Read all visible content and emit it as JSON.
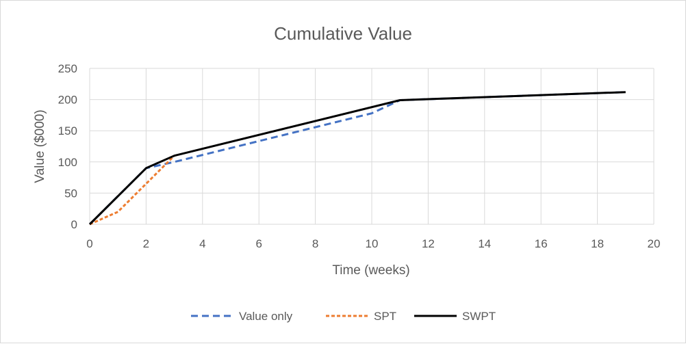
{
  "chart_data": {
    "type": "line",
    "title": "Cumulative Value",
    "xlabel": "Time (weeks)",
    "ylabel": "Value ($000)",
    "xlim": [
      0,
      20
    ],
    "ylim": [
      0,
      250
    ],
    "xticks": [
      "0",
      "2",
      "4",
      "6",
      "8",
      "10",
      "12",
      "14",
      "16",
      "18",
      "20"
    ],
    "yticks": [
      "0",
      "50",
      "100",
      "150",
      "200",
      "250"
    ],
    "grid": true,
    "legend_position": "bottom",
    "series": [
      {
        "name": "Value only",
        "color": "#4472c4",
        "dash": "dashed",
        "points": [
          [
            0,
            0
          ],
          [
            2,
            90
          ],
          [
            3,
            100
          ],
          [
            10,
            178
          ],
          [
            11,
            199
          ],
          [
            19,
            212
          ]
        ]
      },
      {
        "name": "SPT",
        "color": "#ed7d31",
        "dash": "dotted",
        "points": [
          [
            0,
            0
          ],
          [
            1,
            20
          ],
          [
            2,
            65
          ],
          [
            3,
            110
          ]
        ]
      },
      {
        "name": "SWPT",
        "color": "#000000",
        "dash": "solid",
        "points": [
          [
            0,
            0
          ],
          [
            2,
            90
          ],
          [
            3,
            110
          ],
          [
            11,
            199
          ],
          [
            19,
            212
          ]
        ]
      }
    ]
  }
}
